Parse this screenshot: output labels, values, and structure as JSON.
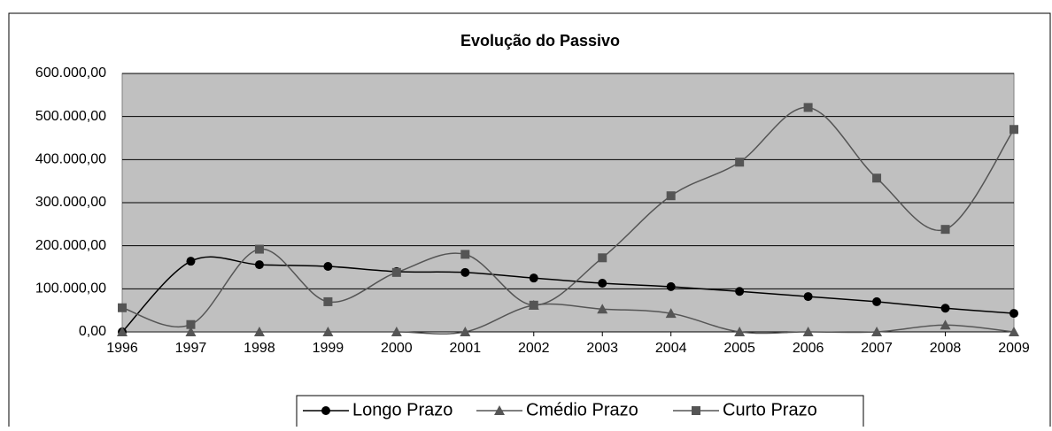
{
  "chart_data": {
    "type": "line",
    "title": "Evolução do Passivo",
    "categories": [
      "1996",
      "1997",
      "1998",
      "1999",
      "2000",
      "2001",
      "2002",
      "2003",
      "2004",
      "2005",
      "2006",
      "2007",
      "2008",
      "2009"
    ],
    "series": [
      {
        "name": "Longo Prazo",
        "color": "#000000",
        "marker": "circle",
        "values": [
          0,
          164000,
          156000,
          152000,
          140000,
          138000,
          125000,
          113000,
          105000,
          94000,
          82000,
          70000,
          55000,
          43000
        ]
      },
      {
        "name": "Cmédio Prazo",
        "color": "#555555",
        "marker": "triangle",
        "values": [
          0,
          0,
          0,
          0,
          0,
          0,
          62000,
          53000,
          43000,
          0,
          0,
          0,
          16000,
          0
        ]
      },
      {
        "name": "Curto Prazo",
        "color": "#555555",
        "marker": "square",
        "values": [
          56000,
          17000,
          192000,
          70000,
          138000,
          180000,
          62000,
          172000,
          316000,
          394000,
          521000,
          357000,
          238000,
          470000
        ]
      }
    ],
    "ylim": [
      0,
      600000
    ],
    "yticks": [
      {
        "value": 0,
        "label": "0,00"
      },
      {
        "value": 100000,
        "label": "100.000,00"
      },
      {
        "value": 200000,
        "label": "200.000,00"
      },
      {
        "value": 300000,
        "label": "300.000,00"
      },
      {
        "value": 400000,
        "label": "400.000,00"
      },
      {
        "value": 500000,
        "label": "500.000,00"
      },
      {
        "value": 600000,
        "label": "600.000,00"
      }
    ],
    "grid": true,
    "smooth": true,
    "legend": "bottom"
  }
}
